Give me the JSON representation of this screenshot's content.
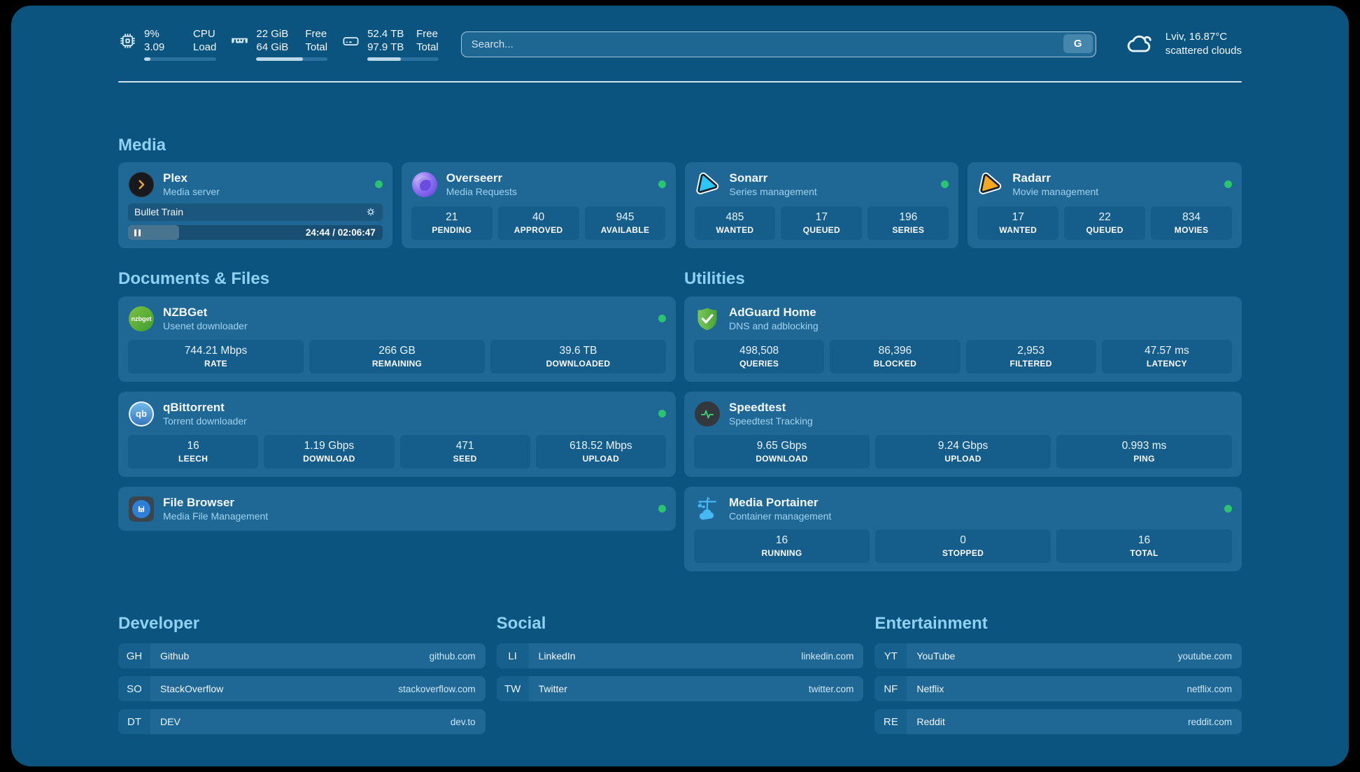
{
  "colors": {
    "bg": "#0c5480",
    "card": "#1f6795",
    "statbox": "#155d8b",
    "title_blue": "#8ed1f3",
    "sub_blue": "#9fd3ef",
    "green": "#2bc46f",
    "text": "#f2f8fc",
    "domain": "#cfe9fb",
    "divider": "#e9f4fb",
    "track": "#2b72a1",
    "fill": "#bcd9ec",
    "search_bg": "#1e6793",
    "gbtn": "#4586ad",
    "abbr": "#16608e"
  },
  "header": {
    "stats": {
      "cpu": {
        "value_top": "9%",
        "value_bottom": "3.09",
        "label_top": "CPU",
        "label_bottom": "Load",
        "progress_pct": 9
      },
      "ram": {
        "value_top": "22 GiB",
        "value_bottom": "64 GiB",
        "label_top": "Free",
        "label_bottom": "Total",
        "progress_pct": 66
      },
      "disk": {
        "value_top": "52.4 TB",
        "value_bottom": "97.9 TB",
        "label_top": "Free",
        "label_bottom": "Total",
        "progress_pct": 47
      }
    },
    "search": {
      "placeholder": "Search...",
      "engine_button": "G"
    },
    "weather": {
      "location": "Lviv, 16.87°C",
      "condition": "scattered clouds"
    }
  },
  "sections": {
    "media": {
      "title": "Media"
    },
    "documents": {
      "title": "Documents & Files"
    },
    "utilities": {
      "title": "Utilities"
    },
    "developer": {
      "title": "Developer"
    },
    "social": {
      "title": "Social"
    },
    "entertainment": {
      "title": "Entertainment"
    }
  },
  "apps": {
    "plex": {
      "title": "Plex",
      "subtitle": "Media server",
      "status": "online",
      "player": {
        "track": "Bullet Train",
        "time": "24:44 / 02:06:47",
        "progress_pct": 20
      }
    },
    "overseerr": {
      "title": "Overseerr",
      "subtitle": "Media Requests",
      "status": "online",
      "stats": [
        {
          "value": "21",
          "label": "PENDING"
        },
        {
          "value": "40",
          "label": "APPROVED"
        },
        {
          "value": "945",
          "label": "AVAILABLE"
        }
      ]
    },
    "sonarr": {
      "title": "Sonarr",
      "subtitle": "Series management",
      "status": "online",
      "stats": [
        {
          "value": "485",
          "label": "WANTED"
        },
        {
          "value": "17",
          "label": "QUEUED"
        },
        {
          "value": "196",
          "label": "SERIES"
        }
      ]
    },
    "radarr": {
      "title": "Radarr",
      "subtitle": "Movie management",
      "status": "online",
      "stats": [
        {
          "value": "17",
          "label": "WANTED"
        },
        {
          "value": "22",
          "label": "QUEUED"
        },
        {
          "value": "834",
          "label": "MOVIES"
        }
      ]
    },
    "nzbget": {
      "title": "NZBGet",
      "subtitle": "Usenet downloader",
      "status": "online",
      "icon_text": "nzbget",
      "stats": [
        {
          "value": "744.21 Mbps",
          "label": "RATE"
        },
        {
          "value": "266 GB",
          "label": "REMAINING"
        },
        {
          "value": "39.6 TB",
          "label": "DOWNLOADED"
        }
      ]
    },
    "qbittorrent": {
      "title": "qBittorrent",
      "subtitle": "Torrent downloader",
      "status": "online",
      "icon_text": "qb",
      "stats": [
        {
          "value": "16",
          "label": "LEECH"
        },
        {
          "value": "1.19 Gbps",
          "label": "DOWNLOAD"
        },
        {
          "value": "471",
          "label": "SEED"
        },
        {
          "value": "618.52 Mbps",
          "label": "UPLOAD"
        }
      ]
    },
    "filebrowser": {
      "title": "File Browser",
      "subtitle": "Media File Management",
      "status": "online"
    },
    "adguard": {
      "title": "AdGuard Home",
      "subtitle": "DNS and adblocking",
      "stats": [
        {
          "value": "498,508",
          "label": "QUERIES"
        },
        {
          "value": "86,396",
          "label": "BLOCKED"
        },
        {
          "value": "2,953",
          "label": "FILTERED"
        },
        {
          "value": "47.57 ms",
          "label": "LATENCY"
        }
      ]
    },
    "speedtest": {
      "title": "Speedtest",
      "subtitle": "Speedtest Tracking",
      "stats": [
        {
          "value": "9.65 Gbps",
          "label": "DOWNLOAD"
        },
        {
          "value": "9.24 Gbps",
          "label": "UPLOAD"
        },
        {
          "value": "0.993 ms",
          "label": "PING"
        }
      ]
    },
    "portainer": {
      "title": "Media Portainer",
      "subtitle": "Container management",
      "status": "online",
      "stats": [
        {
          "value": "16",
          "label": "RUNNING"
        },
        {
          "value": "0",
          "label": "STOPPED"
        },
        {
          "value": "16",
          "label": "TOTAL"
        }
      ]
    }
  },
  "bookmarks": {
    "developer": {
      "items": [
        {
          "abbr": "GH",
          "name": "Github",
          "domain": "github.com"
        },
        {
          "abbr": "SO",
          "name": "StackOverflow",
          "domain": "stackoverflow.com"
        },
        {
          "abbr": "DT",
          "name": "DEV",
          "domain": "dev.to"
        }
      ]
    },
    "social": {
      "items": [
        {
          "abbr": "LI",
          "name": "LinkedIn",
          "domain": "linkedin.com"
        },
        {
          "abbr": "TW",
          "name": "Twitter",
          "domain": "twitter.com"
        }
      ]
    },
    "entertainment": {
      "items": [
        {
          "abbr": "YT",
          "name": "YouTube",
          "domain": "youtube.com"
        },
        {
          "abbr": "NF",
          "name": "Netflix",
          "domain": "netflix.com"
        },
        {
          "abbr": "RE",
          "name": "Reddit",
          "domain": "reddit.com"
        }
      ]
    }
  }
}
